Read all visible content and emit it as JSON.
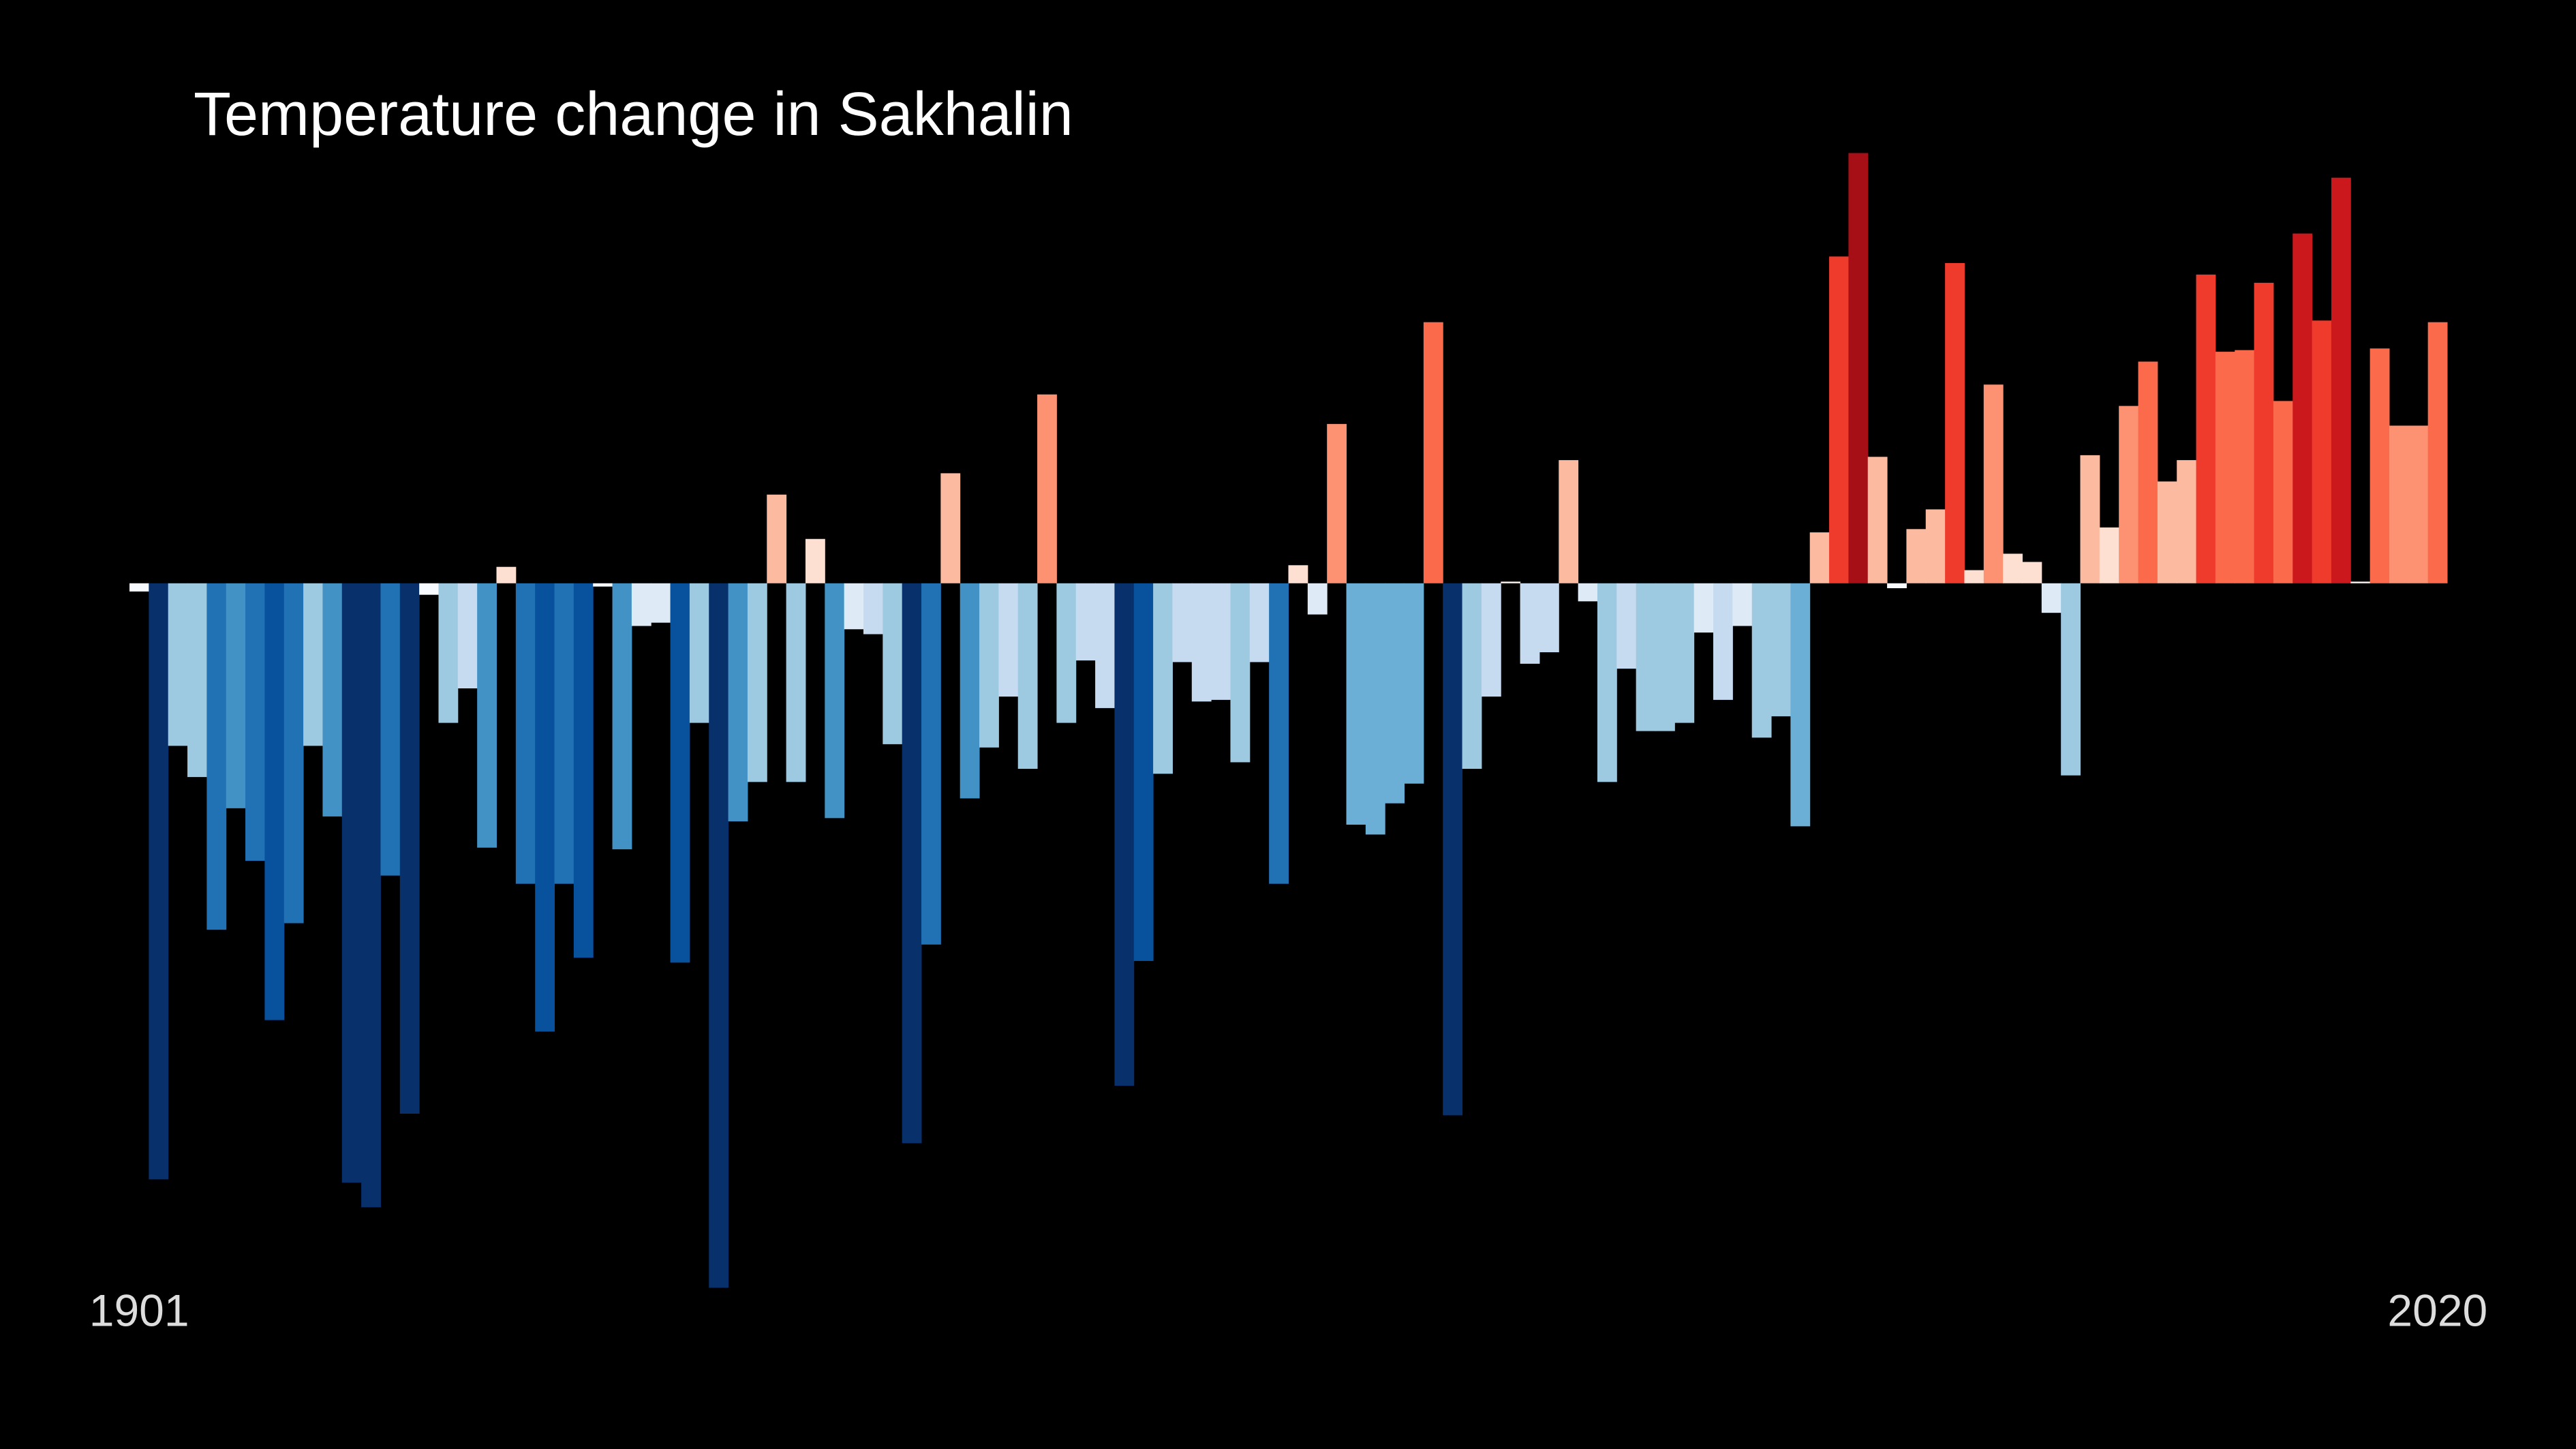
{
  "chart_data": {
    "type": "bar",
    "title": "Temperature change in Sakhalin",
    "categories": [
      "1901",
      null,
      null,
      null,
      null,
      null,
      null,
      null,
      null,
      null,
      null,
      null,
      null,
      null,
      null,
      null,
      null,
      null,
      null,
      null,
      null,
      null,
      null,
      null,
      null,
      null,
      null,
      null,
      null,
      null,
      null,
      null,
      null,
      null,
      null,
      null,
      null,
      null,
      null,
      null,
      null,
      null,
      null,
      null,
      null,
      null,
      null,
      null,
      null,
      null,
      null,
      null,
      null,
      null,
      null,
      null,
      null,
      null,
      null,
      null,
      null,
      null,
      null,
      null,
      null,
      null,
      null,
      null,
      null,
      null,
      null,
      null,
      null,
      null,
      null,
      null,
      null,
      null,
      null,
      null,
      null,
      null,
      null,
      null,
      null,
      null,
      null,
      null,
      null,
      null,
      null,
      null,
      null,
      null,
      null,
      null,
      null,
      null,
      null,
      null,
      null,
      null,
      null,
      null,
      null,
      null,
      null,
      null,
      null,
      null,
      null,
      null,
      null,
      null,
      null,
      null,
      null,
      null,
      null,
      "2020"
    ],
    "values": [
      -0.05,
      -3.63,
      -0.99,
      -1.18,
      -2.11,
      -1.37,
      -1.69,
      -2.66,
      -2.07,
      -0.99,
      -1.42,
      -3.65,
      -3.8,
      -1.78,
      -3.23,
      -0.07,
      -0.85,
      -0.64,
      -1.61,
      0.1,
      -1.83,
      -2.73,
      -1.83,
      -2.28,
      -0.02,
      -1.62,
      -0.26,
      -0.24,
      -2.31,
      -0.85,
      -4.29,
      -1.45,
      -1.21,
      0.54,
      -1.21,
      0.27,
      -1.43,
      -0.28,
      -0.31,
      -0.98,
      -3.41,
      -2.2,
      0.67,
      -1.31,
      -1.0,
      -0.69,
      -1.13,
      1.15,
      -0.85,
      -0.47,
      -0.76,
      -3.06,
      -2.3,
      -1.16,
      -0.48,
      -0.72,
      -0.71,
      -1.09,
      -0.48,
      -1.83,
      0.11,
      -0.19,
      0.97,
      -1.47,
      -1.53,
      -1.34,
      -1.22,
      1.59,
      -3.24,
      -1.13,
      -0.69,
      0.01,
      -0.49,
      -0.42,
      0.75,
      -0.11,
      -1.21,
      -0.52,
      -0.9,
      -0.9,
      -0.85,
      -0.3,
      -0.71,
      -0.26,
      -0.94,
      -0.81,
      -1.48,
      0.31,
      1.99,
      2.62,
      0.77,
      -0.03,
      0.33,
      0.45,
      1.95,
      0.08,
      1.21,
      0.18,
      0.13,
      -0.18,
      -1.17,
      0.78,
      0.34,
      1.08,
      1.35,
      0.62,
      0.75,
      1.88,
      1.41,
      1.42,
      1.83,
      1.11,
      2.13,
      1.6,
      2.47,
      0.01,
      1.43,
      0.96,
      0.96,
      1.59
    ],
    "colors": [
      "#f7fbff",
      "#08306b",
      "#9ecae1",
      "#9ecae1",
      "#2171b5",
      "#4292c6",
      "#2171b5",
      "#08519c",
      "#2171b5",
      "#9ecae1",
      "#4292c6",
      "#08306b",
      "#08306b",
      "#2171b5",
      "#08306b",
      "#f7fbff",
      "#9ecae1",
      "#c6dbef",
      "#4292c6",
      "#fee0d2",
      "#2171b5",
      "#08519c",
      "#2171b5",
      "#08519c",
      "#f7fbff",
      "#4292c6",
      "#deebf7",
      "#deebf7",
      "#08519c",
      "#9ecae1",
      "#08306b",
      "#4292c6",
      "#9ecae1",
      "#fcbba1",
      "#9ecae1",
      "#fee0d2",
      "#4292c6",
      "#deebf7",
      "#c6dbef",
      "#9ecae1",
      "#08306b",
      "#2171b5",
      "#fcbba1",
      "#4292c6",
      "#9ecae1",
      "#c6dbef",
      "#9ecae1",
      "#fc9272",
      "#9ecae1",
      "#c6dbef",
      "#c6dbef",
      "#08306b",
      "#08519c",
      "#9ecae1",
      "#c6dbef",
      "#c6dbef",
      "#c6dbef",
      "#9ecae1",
      "#c6dbef",
      "#2171b5",
      "#fee0d2",
      "#deebf7",
      "#fc9272",
      "#6baed6",
      "#6baed6",
      "#6baed6",
      "#6baed6",
      "#fb6a4a",
      "#08306b",
      "#9ecae1",
      "#c6dbef",
      "#fff5f0",
      "#c6dbef",
      "#c6dbef",
      "#fcbba1",
      "#deebf7",
      "#9ecae1",
      "#c6dbef",
      "#9ecae1",
      "#9ecae1",
      "#9ecae1",
      "#deebf7",
      "#c6dbef",
      "#deebf7",
      "#9ecae1",
      "#9ecae1",
      "#6baed6",
      "#fcbba1",
      "#ef3b2c",
      "#a50f15",
      "#fcbba1",
      "#f7fbff",
      "#fcbba1",
      "#fcbba1",
      "#ef3b2c",
      "#fee0d2",
      "#fc9272",
      "#fee0d2",
      "#fee0d2",
      "#deebf7",
      "#9ecae1",
      "#fcbba1",
      "#fee0d2",
      "#fc9272",
      "#fb6a4a",
      "#fcbba1",
      "#fcbba1",
      "#ef3b2c",
      "#fb6a4a",
      "#fb6a4a",
      "#ef3b2c",
      "#fb6a4a",
      "#cb181d",
      "#ef3b2c",
      "#cb181d",
      "#fff5f0",
      "#fb6a4a",
      "#fc9272",
      "#fc9272",
      "#fb6a4a"
    ],
    "ylim": [
      -4.5,
      3
    ]
  }
}
